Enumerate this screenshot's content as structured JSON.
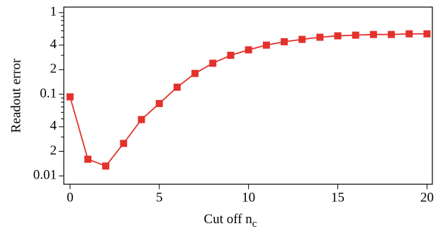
{
  "chart_data": {
    "type": "line",
    "x_label": "Cut off n",
    "x_label_subscript": "c",
    "y_label": "Readout error",
    "x": [
      0,
      1,
      2,
      3,
      4,
      5,
      6,
      7,
      8,
      9,
      10,
      11,
      12,
      13,
      14,
      15,
      16,
      17,
      18,
      19,
      20
    ],
    "series": [
      {
        "color": "#e3312b",
        "values": [
          0.093,
          0.016,
          0.0132,
          0.025,
          0.049,
          0.077,
          0.122,
          0.18,
          0.24,
          0.3,
          0.35,
          0.4,
          0.44,
          0.47,
          0.5,
          0.52,
          0.53,
          0.54,
          0.54,
          0.55,
          0.55
        ]
      }
    ],
    "xlim": [
      -0.35,
      20.3
    ],
    "xticks": [
      0,
      5,
      10,
      15,
      20
    ],
    "ylim": [
      0.0079,
      1.17
    ],
    "ylog": true,
    "yticks": [
      0.01,
      {
        "value": 0.02,
        "label": "2"
      },
      {
        "value": 0.04,
        "label": "4"
      },
      0.1,
      {
        "value": 0.2,
        "label": "2"
      },
      {
        "value": 0.4,
        "label": "4"
      },
      1
    ],
    "yminorticks": [
      0.03,
      0.05,
      0.06,
      0.07,
      0.08,
      0.09,
      0.3,
      0.5,
      0.6,
      0.7,
      0.8,
      0.9
    ]
  }
}
